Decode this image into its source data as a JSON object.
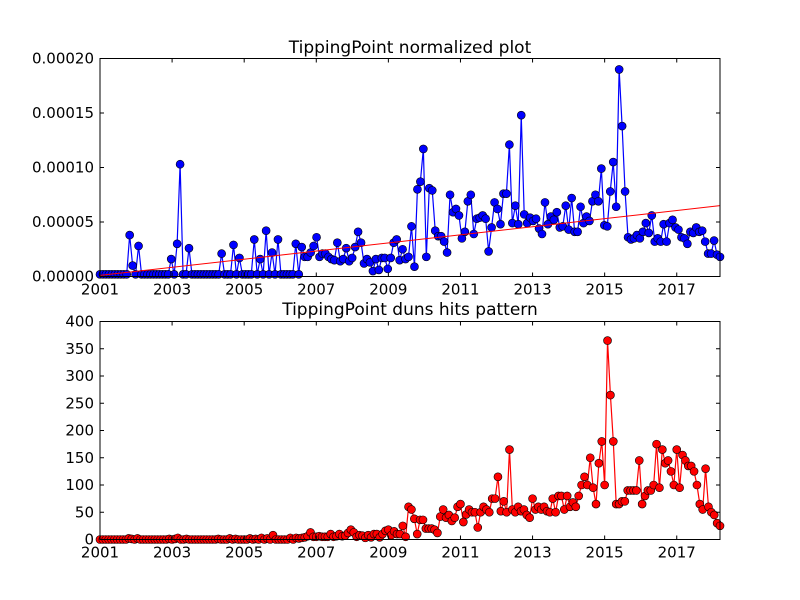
{
  "figure": {
    "background": "#ffffff"
  },
  "chart_data": [
    {
      "type": "line",
      "title": "TippingPoint normalized plot",
      "xlabel": "",
      "ylabel": "",
      "xlim": [
        2001.0,
        2018.2
      ],
      "ylim": [
        0,
        0.0002
      ],
      "x_ticks": [
        2001,
        2003,
        2005,
        2007,
        2009,
        2011,
        2013,
        2015,
        2017
      ],
      "x_tick_labels": [
        "2001",
        "2003",
        "2005",
        "2007",
        "2009",
        "2011",
        "2013",
        "2015",
        "2017"
      ],
      "y_ticks": [
        0,
        5e-05,
        0.0001,
        0.00015,
        0.0002
      ],
      "y_tick_labels": [
        "0.00000",
        "0.00005",
        "0.00010",
        "0.00015",
        "0.00020"
      ],
      "grid": false,
      "series": [
        {
          "color": "#0000ff",
          "marker": "circle",
          "values": [
            2e-06,
            2e-06,
            2e-06,
            2e-06,
            2e-06,
            2e-06,
            2e-06,
            2e-06,
            2e-06,
            2e-06,
            3.8e-05,
            1e-05,
            2e-06,
            2.8e-05,
            2e-06,
            2e-06,
            2e-06,
            2e-06,
            2e-06,
            2e-06,
            2e-06,
            2e-06,
            2e-06,
            2e-06,
            1.6e-05,
            2e-06,
            3e-05,
            0.000103,
            2e-06,
            2e-06,
            2.6e-05,
            2e-06,
            2e-06,
            2e-06,
            2e-06,
            2e-06,
            2e-06,
            2e-06,
            2e-06,
            2e-06,
            2e-06,
            2.1e-05,
            2e-06,
            2e-06,
            2e-06,
            2.9e-05,
            2e-06,
            1.7e-05,
            2e-06,
            2e-06,
            2e-06,
            2e-06,
            3.4e-05,
            2e-06,
            1.6e-05,
            2e-06,
            4.2e-05,
            2e-06,
            2.2e-05,
            2e-06,
            3.4e-05,
            2e-06,
            2e-06,
            2e-06,
            2e-06,
            2e-06,
            3e-05,
            2e-06,
            2.7e-05,
            1.8e-05,
            1.8e-05,
            2.2e-05,
            2.8e-05,
            3.6e-05,
            1.8e-05,
            2.1e-05,
            2.1e-05,
            1.8e-05,
            1.6e-05,
            1.5e-05,
            3.1e-05,
            1.4e-05,
            1.6e-05,
            2.6e-05,
            1.4e-05,
            1.7e-05,
            2.7e-05,
            4.1e-05,
            3.1e-05,
            1.2e-05,
            1.6e-05,
            1.3e-05,
            5e-06,
            1.6e-05,
            6e-06,
            1.7e-05,
            1.7e-05,
            7e-06,
            1.7e-05,
            3.1e-05,
            3.4e-05,
            1.5e-05,
            2.5e-05,
            1.6e-05,
            1.8e-05,
            4.6e-05,
            9e-06,
            8e-05,
            8.7e-05,
            0.000117,
            1.8e-05,
            8.1e-05,
            7.9e-05,
            4.2e-05,
            3.7e-05,
            3.7e-05,
            3.2e-05,
            2.2e-05,
            7.5e-05,
            5.9e-05,
            6.2e-05,
            5.6e-05,
            3.5e-05,
            4.1e-05,
            6.9e-05,
            7.5e-05,
            3.9e-05,
            5.3e-05,
            5.4e-05,
            5.6e-05,
            5.3e-05,
            2.3e-05,
            4.5e-05,
            6.8e-05,
            6.2e-05,
            4.8e-05,
            7.6e-05,
            7.6e-05,
            0.000121,
            4.9e-05,
            6.5e-05,
            4.8e-05,
            0.000148,
            5.7e-05,
            4.9e-05,
            5.4e-05,
            5.1e-05,
            5.3e-05,
            4.4e-05,
            3.9e-05,
            6.8e-05,
            4.8e-05,
            5.5e-05,
            5.2e-05,
            5.9e-05,
            4.5e-05,
            4.6e-05,
            6.5e-05,
            4.3e-05,
            7.2e-05,
            4.1e-05,
            4.1e-05,
            6.4e-05,
            4.9e-05,
            5.5e-05,
            5.1e-05,
            6.9e-05,
            7.5e-05,
            6.9e-05,
            9.9e-05,
            4.7e-05,
            4.6e-05,
            7.8e-05,
            0.000105,
            6.4e-05,
            0.00019,
            0.000138,
            7.8e-05,
            3.6e-05,
            3.4e-05,
            3.5e-05,
            3.8e-05,
            3.5e-05,
            4.1e-05,
            4.9e-05,
            4e-05,
            5.6e-05,
            3.2e-05,
            3.5e-05,
            3.2e-05,
            4.8e-05,
            3.2e-05,
            4.9e-05,
            5.2e-05,
            4.5e-05,
            4.3e-05,
            3.6e-05,
            3.5e-05,
            3e-05,
            4.1e-05,
            4e-05,
            4.5e-05,
            4.1e-05,
            4.2e-05,
            3.2e-05,
            2.1e-05,
            2.1e-05,
            3.3e-05,
            2e-05,
            1.8e-05
          ]
        },
        {
          "type": "trend-line",
          "color": "#ff0000",
          "x": [
            2001.0,
            2018.2
          ],
          "values": [
            1e-06,
            6.5e-05
          ]
        }
      ]
    },
    {
      "type": "line",
      "title": "TippingPoint duns hits pattern",
      "xlabel": "",
      "ylabel": "",
      "xlim": [
        2001.0,
        2018.2
      ],
      "ylim": [
        0,
        400
      ],
      "x_ticks": [
        2001,
        2003,
        2005,
        2007,
        2009,
        2011,
        2013,
        2015,
        2017
      ],
      "x_tick_labels": [
        "2001",
        "2003",
        "2005",
        "2007",
        "2009",
        "2011",
        "2013",
        "2015",
        "2017"
      ],
      "y_ticks": [
        0,
        50,
        100,
        150,
        200,
        250,
        300,
        350,
        400
      ],
      "y_tick_labels": [
        "0",
        "50",
        "100",
        "150",
        "200",
        "250",
        "300",
        "350",
        "400"
      ],
      "grid": false,
      "series": [
        {
          "color": "#ff0000",
          "marker": "circle",
          "values": [
            0,
            0,
            0,
            0,
            0,
            0,
            0,
            0,
            0,
            0,
            2,
            1,
            0,
            2,
            0,
            0,
            0,
            0,
            0,
            0,
            0,
            0,
            0,
            0,
            1,
            0,
            1,
            3,
            0,
            0,
            1,
            0,
            0,
            0,
            0,
            0,
            0,
            0,
            0,
            0,
            0,
            1,
            0,
            0,
            0,
            2,
            0,
            1,
            0,
            0,
            0,
            0,
            2,
            0,
            1,
            0,
            3,
            0,
            2,
            0,
            8,
            0,
            0,
            0,
            0,
            0,
            3,
            0,
            3,
            2,
            3,
            4,
            6,
            13,
            5,
            5,
            6,
            5,
            5,
            5,
            10,
            5,
            6,
            10,
            6,
            7,
            12,
            18,
            13,
            5,
            8,
            7,
            3,
            8,
            4,
            10,
            10,
            4,
            10,
            16,
            18,
            8,
            15,
            10,
            10,
            25,
            5,
            60,
            55,
            38,
            10,
            36,
            36,
            20,
            20,
            20,
            18,
            12,
            42,
            55,
            40,
            45,
            34,
            40,
            60,
            65,
            32,
            46,
            55,
            50,
            50,
            22,
            50,
            60,
            55,
            50,
            75,
            75,
            115,
            52,
            70,
            50,
            165,
            55,
            50,
            60,
            52,
            55,
            45,
            40,
            75,
            55,
            60,
            55,
            60,
            52,
            50,
            75,
            50,
            80,
            80,
            55,
            80,
            60,
            68,
            60,
            80,
            100,
            115,
            100,
            150,
            95,
            65,
            140,
            180,
            100,
            365,
            265,
            180,
            65,
            65,
            70,
            70,
            90,
            90,
            90,
            90,
            145,
            65,
            80,
            90,
            90,
            100,
            175,
            95,
            165,
            140,
            145,
            125,
            100,
            165,
            95,
            155,
            145,
            135,
            135,
            125,
            100,
            65,
            55,
            130,
            60,
            50,
            45,
            30,
            25
          ]
        }
      ]
    }
  ]
}
